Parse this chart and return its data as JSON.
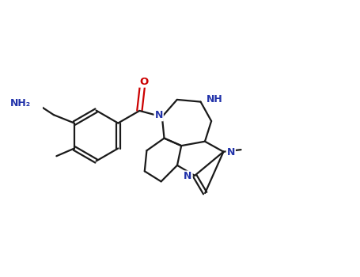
{
  "background_color": "#ffffff",
  "bond_color": "#1a1a1a",
  "atom_colors": {
    "O": "#cc0000",
    "N": "#2233aa",
    "default": "#1a1a1a"
  },
  "figsize": [
    4.55,
    3.5
  ],
  "dpi": 100
}
